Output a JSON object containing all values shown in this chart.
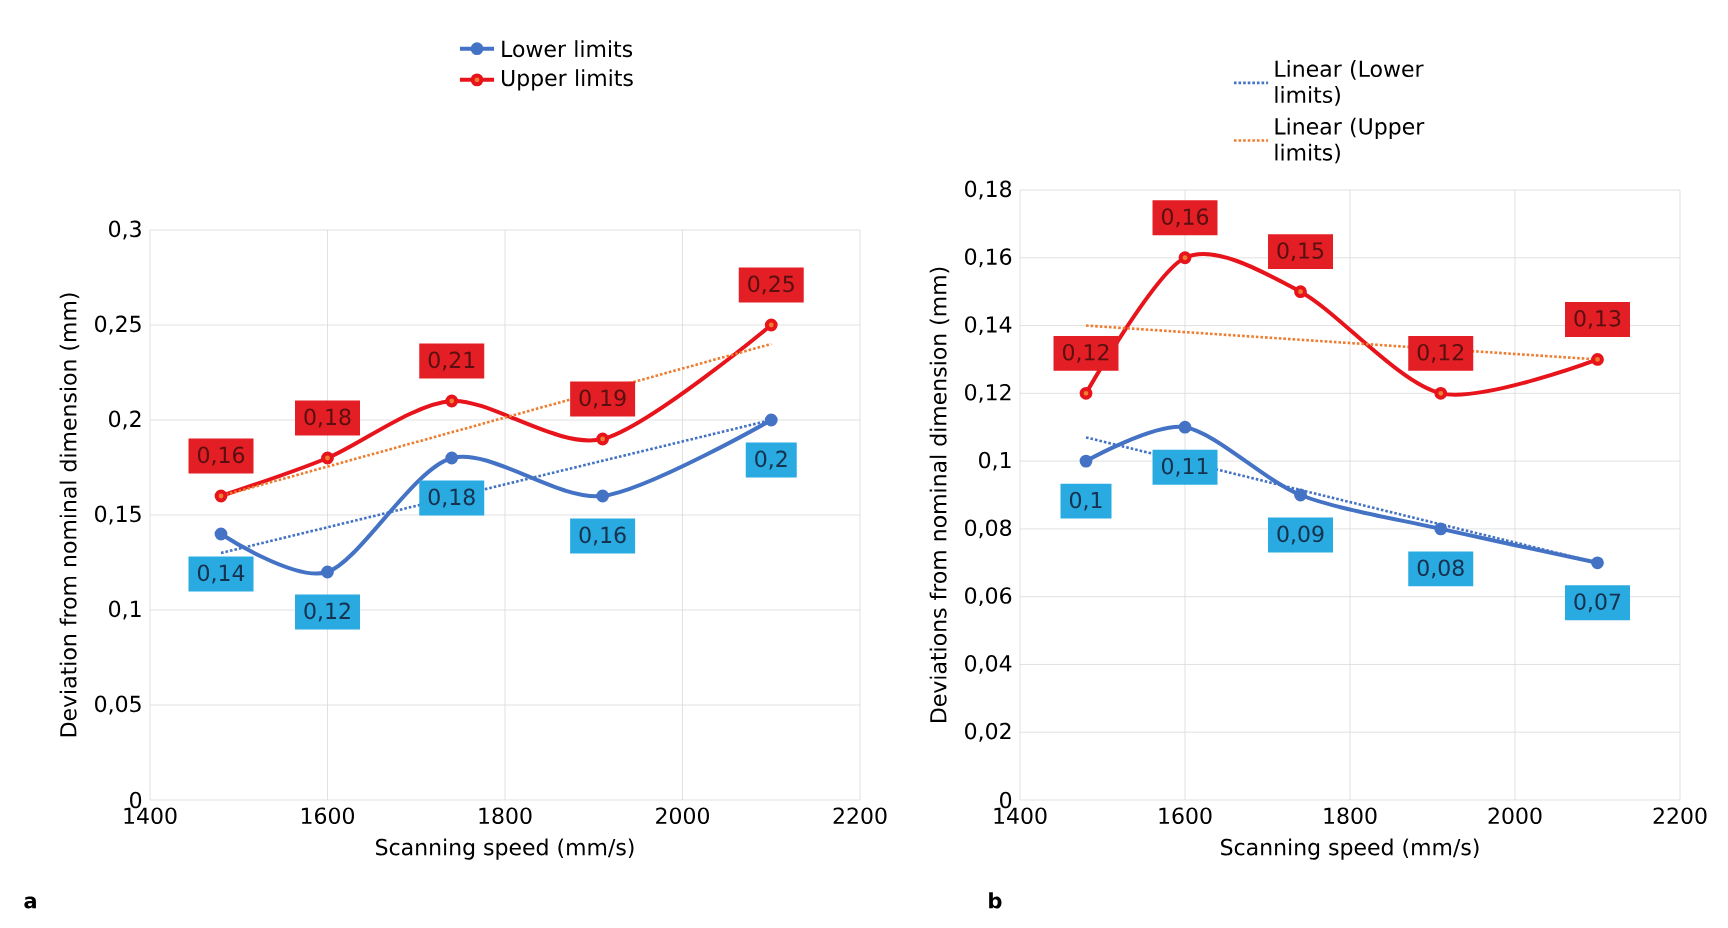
{
  "chart_data": [
    {
      "type": "line",
      "xlabel": "Scanning speed (mm/s)",
      "ylabel": "Deviation from nominal dimension (mm)",
      "annotations": [
        "a"
      ],
      "xlim": [
        1400,
        2200
      ],
      "xticks": [
        1400,
        1600,
        1800,
        2000,
        2200
      ],
      "ylim": [
        0,
        0.3
      ],
      "yticks": [
        0,
        {
          "value": 0.05,
          "label": "0,05"
        },
        {
          "value": 0.1,
          "label": "0,1"
        },
        {
          "value": 0.15,
          "label": "0,15"
        },
        {
          "value": 0.2,
          "label": "0,2"
        },
        {
          "value": 0.25,
          "label": "0,25"
        },
        {
          "value": 0.3,
          "label": "0,3"
        }
      ],
      "grid": true,
      "legend": "top",
      "marker": "circle",
      "series": [
        {
          "name": "Lower limits",
          "color": "#4472c4",
          "x": [
            1480,
            1600,
            1740,
            1910,
            2100
          ],
          "values": [
            0.14,
            0.12,
            0.18,
            0.16,
            0.2
          ],
          "value_labels": [
            "0,14",
            "0,12",
            "0,18",
            "0,16",
            "0,2"
          ]
        },
        {
          "name": "Upper limits",
          "color": "#e8141c",
          "x": [
            1480,
            1600,
            1740,
            1910,
            2100
          ],
          "values": [
            0.16,
            0.18,
            0.21,
            0.19,
            0.25
          ],
          "value_labels": [
            "0,16",
            "0,18",
            "0,21",
            "0,19",
            "0,25"
          ]
        },
        {
          "color": "#4472c4",
          "x": [
            1480,
            2100
          ],
          "values": [
            0.13,
            0.2
          ],
          "line_style": "dotted",
          "marker": "none"
        },
        {
          "color": "#ed7d31",
          "x": [
            1480,
            2100
          ],
          "values": [
            0.16,
            0.24
          ],
          "line_style": "dotted",
          "marker": "none"
        }
      ]
    },
    {
      "type": "line",
      "xlabel": "Scanning speed (mm/s)",
      "ylabel": "Deviations from nominal dimension (mm)",
      "annotations": [
        "b"
      ],
      "xlim": [
        1400,
        2200
      ],
      "xticks": [
        1400,
        1600,
        1800,
        2000,
        2200
      ],
      "ylim": [
        0,
        0.18
      ],
      "yticks": [
        0,
        {
          "value": 0.02,
          "label": "0,02"
        },
        {
          "value": 0.04,
          "label": "0,04"
        },
        {
          "value": 0.06,
          "label": "0,06"
        },
        {
          "value": 0.08,
          "label": "0,08"
        },
        {
          "value": 0.1,
          "label": "0,1"
        },
        {
          "value": 0.12,
          "label": "0,12"
        },
        {
          "value": 0.14,
          "label": "0,14"
        },
        {
          "value": 0.16,
          "label": "0,16"
        },
        {
          "value": 0.18,
          "label": "0,18"
        }
      ],
      "grid": true,
      "legend": "top",
      "marker": "circle",
      "series": [
        {
          "color": "#4472c4",
          "x": [
            1480,
            1600,
            1740,
            1910,
            2100
          ],
          "values": [
            0.1,
            0.11,
            0.09,
            0.08,
            0.07
          ],
          "value_labels": [
            "0,1",
            "0,11",
            "0,09",
            "0,08",
            "0,07"
          ]
        },
        {
          "color": "#e8141c",
          "x": [
            1480,
            1600,
            1740,
            1910,
            2100
          ],
          "values": [
            0.12,
            0.16,
            0.15,
            0.12,
            0.13
          ],
          "value_labels": [
            "0,12",
            "0,16",
            "0,15",
            "0,12",
            "0,13"
          ]
        },
        {
          "name": "Linear (Lower limits)",
          "color": "#4472c4",
          "x": [
            1480,
            2100
          ],
          "values": [
            0.107,
            0.07
          ],
          "line_style": "dotted",
          "marker": "none"
        },
        {
          "name": "Linear (Upper limits)",
          "color": "#ed7d31",
          "x": [
            1480,
            2100
          ],
          "values": [
            0.14,
            0.13
          ],
          "line_style": "dotted",
          "marker": "none"
        }
      ]
    }
  ]
}
